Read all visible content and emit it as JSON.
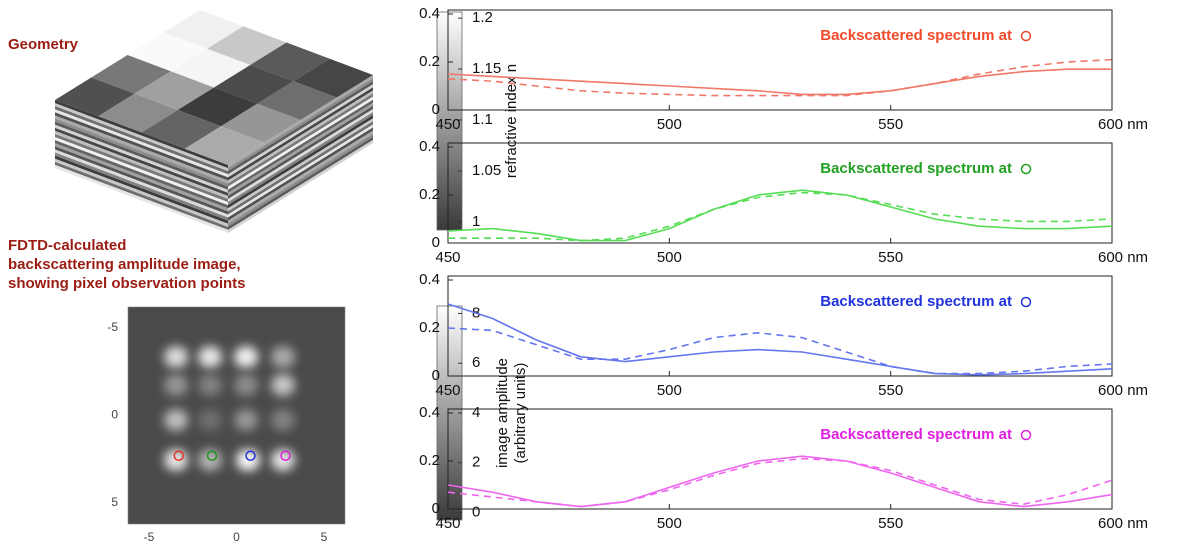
{
  "panel_labels": {
    "geometry": "Geometry",
    "image": [
      "FDTD-calculated",
      "backscattering amplitude image,",
      "showing pixel observation points"
    ]
  },
  "chart_data": [
    {
      "type": "colorbar",
      "label": [
        "refractive index n"
      ],
      "ylim": [
        0.992,
        1.206
      ],
      "yticks": [
        1,
        1.05,
        1.1,
        1.15,
        1.2
      ],
      "colors": [
        "#3a3a3a",
        "#ffffff"
      ]
    },
    {
      "type": "image",
      "xlim": [
        -6.2,
        6.2
      ],
      "ylim": [
        -6.2,
        6.2
      ],
      "y_reversed": true,
      "xticks": [
        -5,
        0,
        5
      ],
      "yticks": [
        -5,
        0,
        5
      ],
      "points": {
        "x": [
          -3.3,
          -1.4,
          0.8,
          2.8
        ],
        "y": [
          2.3,
          2.3,
          2.3,
          2.3
        ],
        "colors": [
          "#e8322a",
          "#1f9a1f",
          "#2233dd",
          "#e020e0"
        ]
      }
    },
    {
      "type": "colorbar",
      "label": [
        "image amplitude",
        "(arbitrary units)"
      ],
      "ylim": [
        -0.3,
        8.3
      ],
      "yticks": [
        0,
        2,
        4,
        6,
        8
      ],
      "colors": [
        "#3a3a3a",
        "#ffffff"
      ]
    },
    {
      "type": "line",
      "annotation": "Backscattered spectrum at",
      "annotation_color": "#f04a2a",
      "xlim": [
        450,
        600
      ],
      "ylim": [
        0,
        0.4
      ],
      "xticks": [
        450,
        500,
        550,
        {
          "value": 600,
          "label": "600 nm"
        }
      ],
      "yticks": [
        0,
        0.2,
        0.4
      ],
      "x": [
        450,
        460,
        470,
        480,
        490,
        500,
        510,
        520,
        530,
        540,
        550,
        560,
        570,
        580,
        590,
        600
      ],
      "series": [
        {
          "color": "#f07868",
          "dash": false,
          "values": [
            0.15,
            0.14,
            0.13,
            0.12,
            0.11,
            0.1,
            0.09,
            0.08,
            0.065,
            0.065,
            0.08,
            0.11,
            0.14,
            0.16,
            0.17,
            0.17
          ]
        },
        {
          "color": "#f07868",
          "dash": true,
          "values": [
            0.13,
            0.12,
            0.1,
            0.08,
            0.07,
            0.065,
            0.06,
            0.06,
            0.06,
            0.06,
            0.08,
            0.11,
            0.15,
            0.18,
            0.2,
            0.21
          ]
        }
      ]
    },
    {
      "type": "line",
      "annotation": "Backscattered spectrum at",
      "annotation_color": "#22a022",
      "xlim": [
        450,
        600
      ],
      "ylim": [
        0,
        0.4
      ],
      "xticks": [
        450,
        500,
        550,
        {
          "value": 600,
          "label": "600 nm"
        }
      ],
      "yticks": [
        0,
        0.2,
        0.4
      ],
      "x": [
        450,
        460,
        470,
        480,
        490,
        500,
        510,
        520,
        530,
        540,
        550,
        560,
        570,
        580,
        590,
        600
      ],
      "series": [
        {
          "color": "#55dd55",
          "dash": false,
          "values": [
            0.05,
            0.06,
            0.04,
            0.01,
            0.01,
            0.06,
            0.14,
            0.2,
            0.22,
            0.2,
            0.15,
            0.1,
            0.07,
            0.06,
            0.06,
            0.07
          ]
        },
        {
          "color": "#55dd55",
          "dash": true,
          "values": [
            0.02,
            0.02,
            0.02,
            0.01,
            0.02,
            0.07,
            0.14,
            0.19,
            0.21,
            0.2,
            0.16,
            0.12,
            0.1,
            0.09,
            0.09,
            0.1
          ]
        }
      ]
    },
    {
      "type": "line",
      "annotation": "Backscattered spectrum at",
      "annotation_color": "#2233dd",
      "xlim": [
        450,
        600
      ],
      "ylim": [
        0,
        0.4
      ],
      "xticks": [
        450,
        500,
        550,
        {
          "value": 600,
          "label": "600 nm"
        }
      ],
      "yticks": [
        0,
        0.2,
        0.4
      ],
      "x": [
        450,
        460,
        470,
        480,
        490,
        500,
        510,
        520,
        530,
        540,
        550,
        560,
        570,
        580,
        590,
        600
      ],
      "series": [
        {
          "color": "#6677ee",
          "dash": false,
          "values": [
            0.3,
            0.24,
            0.15,
            0.08,
            0.06,
            0.08,
            0.1,
            0.11,
            0.1,
            0.07,
            0.04,
            0.01,
            0.005,
            0.01,
            0.02,
            0.03
          ]
        },
        {
          "color": "#6677ee",
          "dash": true,
          "values": [
            0.2,
            0.19,
            0.13,
            0.07,
            0.07,
            0.11,
            0.16,
            0.18,
            0.16,
            0.1,
            0.04,
            0.01,
            0.01,
            0.02,
            0.04,
            0.05
          ]
        }
      ]
    },
    {
      "type": "line",
      "annotation": "Backscattered spectrum at",
      "annotation_color": "#e020e0",
      "xlim": [
        450,
        600
      ],
      "ylim": [
        0,
        0.4
      ],
      "xticks": [
        450,
        500,
        550,
        {
          "value": 600,
          "label": "600 nm"
        }
      ],
      "yticks": [
        0,
        0.2,
        0.4
      ],
      "x": [
        450,
        460,
        470,
        480,
        490,
        500,
        510,
        520,
        530,
        540,
        550,
        560,
        570,
        580,
        590,
        600
      ],
      "series": [
        {
          "color": "#ee66ee",
          "dash": false,
          "values": [
            0.1,
            0.07,
            0.03,
            0.01,
            0.03,
            0.09,
            0.15,
            0.2,
            0.22,
            0.2,
            0.15,
            0.09,
            0.03,
            0.01,
            0.03,
            0.06
          ]
        },
        {
          "color": "#ee66ee",
          "dash": true,
          "values": [
            0.07,
            0.05,
            0.03,
            0.01,
            0.03,
            0.08,
            0.14,
            0.19,
            0.21,
            0.2,
            0.16,
            0.1,
            0.04,
            0.02,
            0.06,
            0.12
          ]
        }
      ]
    }
  ]
}
